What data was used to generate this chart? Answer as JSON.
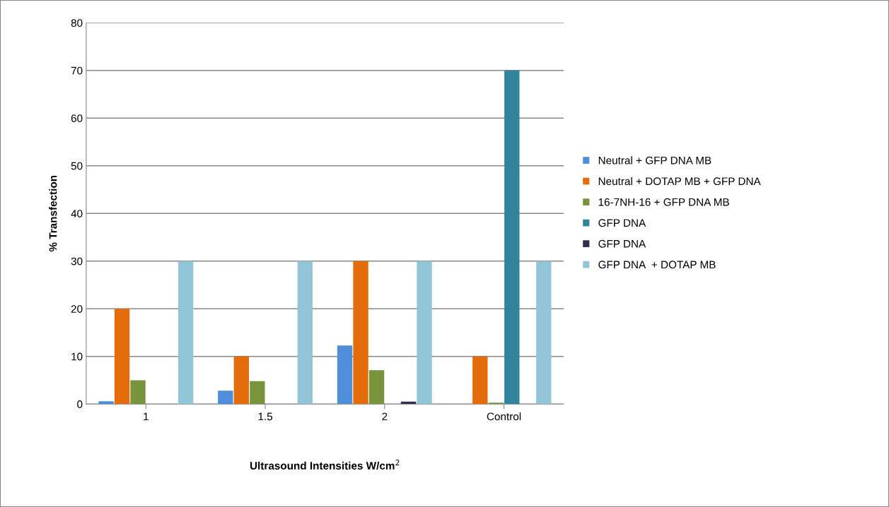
{
  "chart_data": {
    "type": "bar",
    "xlabel": "Ultrasound Intensities W/cm$^{2}$",
    "ylabel": "% Transfection",
    "categories": [
      "1",
      "1.5",
      "2",
      "Control"
    ],
    "series": [
      {
        "name": "Neutral + GFP DNA MB",
        "color": "#4f8fd9",
        "values": [
          0.6,
          2.8,
          12.3,
          0
        ]
      },
      {
        "name": "Neutral + DOTAP MB + GFP DNA",
        "color": "#e46c0a",
        "values": [
          20,
          10,
          30,
          10
        ]
      },
      {
        "name": "16-7NH-16 + GFP DNA MB",
        "color": "#77933c",
        "values": [
          5,
          4.8,
          7.1,
          0.3
        ]
      },
      {
        "name": "GFP DNA",
        "color": "#31849b",
        "values": [
          0,
          0,
          0,
          70
        ]
      },
      {
        "name": "GFP DNA",
        "color": "#302f4f",
        "values": [
          0,
          0,
          0.5,
          0
        ]
      },
      {
        "name": "GFP DNA  + DOTAP MB",
        "color": "#93c5d9",
        "values": [
          30,
          30,
          30,
          30
        ]
      }
    ],
    "ylim": [
      0,
      80
    ],
    "yticks": [
      0,
      10,
      20,
      30,
      40,
      50,
      60,
      70,
      80
    ],
    "grid": "y",
    "legend": "right"
  }
}
